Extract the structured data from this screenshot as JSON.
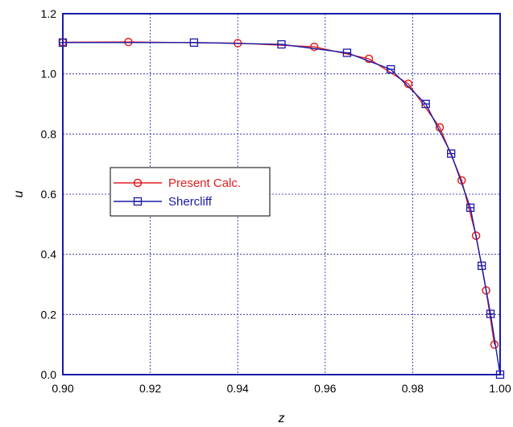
{
  "chart_data": {
    "type": "line",
    "xlabel": "z",
    "ylabel": "u",
    "xlim": [
      0.9,
      1.0
    ],
    "ylim": [
      0.0,
      1.2
    ],
    "x_ticks": [
      "0.90",
      "0.92",
      "0.94",
      "0.96",
      "0.98",
      "1.00"
    ],
    "y_ticks": [
      "0.0",
      "0.2",
      "0.4",
      "0.6",
      "0.8",
      "1.0",
      "1.2"
    ],
    "grid": true,
    "legend_position": "middle-left",
    "series": [
      {
        "name": "Present Calc.",
        "color": "#e02020",
        "marker": "circle",
        "x": [
          0.9,
          0.915,
          0.94,
          0.9575,
          0.97,
          0.979,
          0.9862,
          0.9912,
          0.9945,
          0.9968,
          0.9987
        ],
        "y": [
          1.105,
          1.106,
          1.102,
          1.09,
          1.05,
          0.967,
          0.822,
          0.646,
          0.462,
          0.28,
          0.1
        ]
      },
      {
        "name": "Shercliff",
        "color": "#1a1aaa",
        "marker": "square",
        "x": [
          0.9,
          0.93,
          0.95,
          0.965,
          0.975,
          0.983,
          0.9888,
          0.9932,
          0.9958,
          0.9978,
          1.0
        ],
        "y": [
          1.104,
          1.104,
          1.098,
          1.07,
          1.015,
          0.9,
          0.735,
          0.555,
          0.362,
          0.202,
          0.0
        ]
      }
    ]
  }
}
